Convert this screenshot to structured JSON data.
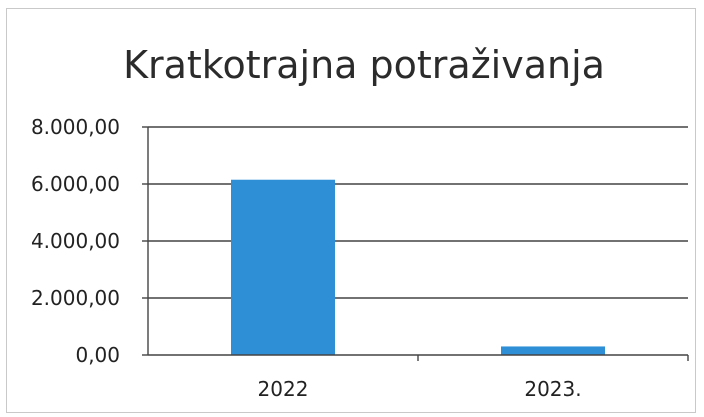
{
  "chart_data": {
    "type": "bar",
    "title": "Kratkotrajna potraživanja",
    "categories": [
      "2022",
      "2023."
    ],
    "values": [
      6150,
      300
    ],
    "y_ticks": [
      "0,00",
      "2.000,00",
      "4.000,00",
      "6.000,00",
      "8.000,00"
    ],
    "ylim": [
      0,
      8000
    ],
    "grid": true,
    "legend": false,
    "bar_color": "#2e8fd6",
    "xlabel": "",
    "ylabel": ""
  }
}
